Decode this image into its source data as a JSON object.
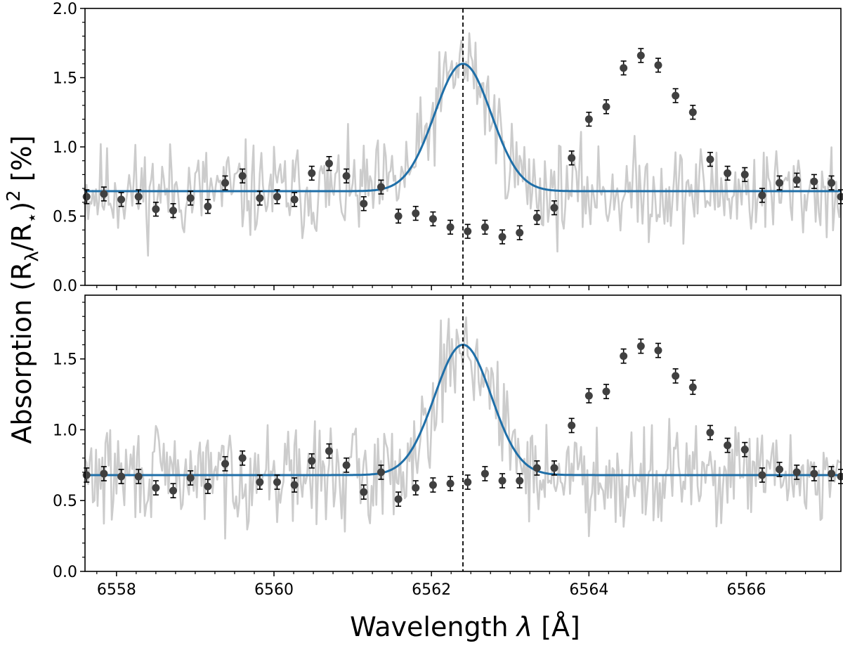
{
  "chart_data": {
    "type": "line",
    "xlabel_prefix": "Wavelength ",
    "xlabel_symbol": "λ",
    "xlabel_unit": " [Å]",
    "ylabel_prefix": "Absorption (R",
    "ylabel_sub1": "λ",
    "ylabel_mid": "/R",
    "ylabel_sub2": "⋆",
    "ylabel_close": ")",
    "ylabel_sup": "2",
    "ylabel_unit": " [%]",
    "xlim": [
      6557.6,
      6567.2
    ],
    "x_ticks": [
      6558,
      6560,
      6562,
      6564,
      6566
    ],
    "x_tick_labels": [
      "6558",
      "6560",
      "6562",
      "6564",
      "6566"
    ],
    "x_minor_ticks": [
      6557.75,
      6558.25,
      6558.5,
      6558.75,
      6559,
      6559.25,
      6559.5,
      6559.75,
      6560.25,
      6560.5,
      6560.75,
      6561,
      6561.25,
      6561.5,
      6561.75,
      6562.25,
      6562.5,
      6562.75,
      6563,
      6563.25,
      6563.5,
      6563.75,
      6564.25,
      6564.5,
      6564.75,
      6565,
      6565.25,
      6565.5,
      6565.75,
      6566.25,
      6566.5,
      6566.75,
      6567
    ],
    "line_center": 6562.4,
    "colors": {
      "fit": "#1f6fa8",
      "points": "#404040",
      "raw": "#cccccc",
      "marker": "#000000"
    },
    "panels": [
      {
        "ylim": [
          0,
          2.0
        ],
        "y_ticks": [
          0.0,
          0.5,
          1.0,
          1.5,
          2.0
        ],
        "y_tick_labels": [
          "0.0",
          "0.5",
          "1.0",
          "1.5",
          "2.0"
        ],
        "fit": {
          "baseline": 0.68,
          "center": 6562.4,
          "amplitude": 0.92,
          "sigma": 0.36
        },
        "raw_seed": 11,
        "points": {
          "x": [
            6557.62,
            6557.84,
            6558.06,
            6558.28,
            6558.5,
            6558.72,
            6558.94,
            6559.16,
            6559.38,
            6559.6,
            6559.82,
            6560.04,
            6560.26,
            6560.48,
            6560.7,
            6560.92,
            6561.14,
            6561.36,
            6561.58,
            6561.8,
            6562.02,
            6562.24,
            6562.46,
            6562.68,
            6562.9,
            6563.12,
            6563.34,
            6563.56,
            6563.78,
            6564.0,
            6564.22,
            6564.44,
            6564.66,
            6564.88,
            6565.1,
            6565.32,
            6565.54,
            6565.76,
            6565.98,
            6566.2,
            6566.42,
            6566.64,
            6566.86,
            6567.08,
            6567.2
          ],
          "y": [
            0.64,
            0.66,
            0.62,
            0.64,
            0.55,
            0.54,
            0.63,
            0.57,
            0.74,
            0.79,
            0.63,
            0.64,
            0.62,
            0.81,
            0.88,
            0.79,
            0.59,
            0.71,
            0.5,
            0.52,
            0.48,
            0.42,
            0.39,
            0.42,
            0.35,
            0.38,
            0.49,
            0.56,
            0.92,
            1.2,
            1.29,
            1.57,
            1.66,
            1.59,
            1.37,
            1.25,
            0.91,
            0.81,
            0.8,
            0.65,
            0.74,
            0.76,
            0.75,
            0.74,
            0.64
          ],
          "err": 0.05
        }
      },
      {
        "ylim": [
          0,
          1.95
        ],
        "y_ticks": [
          0.0,
          0.5,
          1.0,
          1.5
        ],
        "y_tick_labels": [
          "0.0",
          "0.5",
          "1.0",
          "1.5"
        ],
        "fit": {
          "baseline": 0.68,
          "center": 6562.4,
          "amplitude": 0.92,
          "sigma": 0.36
        },
        "raw_seed": 29,
        "points": {
          "x": [
            6557.62,
            6557.84,
            6558.06,
            6558.28,
            6558.5,
            6558.72,
            6558.94,
            6559.16,
            6559.38,
            6559.6,
            6559.82,
            6560.04,
            6560.26,
            6560.48,
            6560.7,
            6560.92,
            6561.14,
            6561.36,
            6561.58,
            6561.8,
            6562.02,
            6562.24,
            6562.46,
            6562.68,
            6562.9,
            6563.12,
            6563.34,
            6563.56,
            6563.78,
            6564.0,
            6564.22,
            6564.44,
            6564.66,
            6564.88,
            6565.1,
            6565.32,
            6565.54,
            6565.76,
            6565.98,
            6566.2,
            6566.42,
            6566.64,
            6566.86,
            6567.08,
            6567.2
          ],
          "y": [
            0.68,
            0.69,
            0.67,
            0.67,
            0.59,
            0.57,
            0.66,
            0.6,
            0.76,
            0.8,
            0.63,
            0.63,
            0.61,
            0.78,
            0.85,
            0.75,
            0.56,
            0.7,
            0.51,
            0.59,
            0.61,
            0.62,
            0.63,
            0.69,
            0.64,
            0.64,
            0.73,
            0.73,
            1.03,
            1.24,
            1.27,
            1.52,
            1.59,
            1.56,
            1.38,
            1.3,
            0.98,
            0.89,
            0.86,
            0.68,
            0.72,
            0.7,
            0.69,
            0.69,
            0.67
          ],
          "err": 0.05
        }
      }
    ]
  }
}
